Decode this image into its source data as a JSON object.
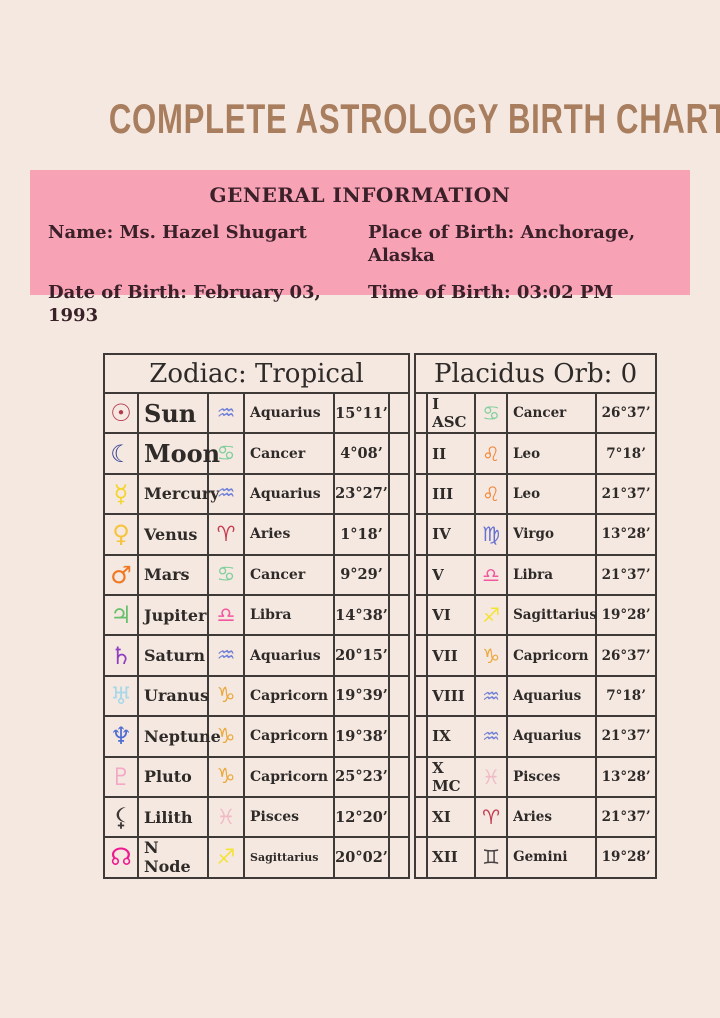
{
  "title": "COMPLETE ASTROLOGY BIRTH CHART",
  "theme": {
    "page_bg": "#f5e8e1",
    "panel_pink": "#f8a2b5",
    "title_brown": "#a87e5f",
    "text_dark": "#3a2029",
    "table_text": "#2e2a28",
    "border": "#3e3a38"
  },
  "general_info": {
    "heading": "GENERAL INFORMATION",
    "name_line": "Name: Ms. Hazel Shugart",
    "date_line": "Date of Birth: February 03, 1993",
    "place_line": "Place of Birth: Anchorage, Alaska",
    "time_line": "Time of Birth: 03:02 PM"
  },
  "zodiac_table": {
    "header": "Zodiac: Tropical",
    "rows": [
      {
        "planet": "Sun",
        "planet_icon": "sun-icon",
        "planet_glyph": "☉",
        "planet_color": "#b43a4c",
        "emphasis": true,
        "sign": "Aquarius",
        "sign_icon": "aquarius-icon",
        "sign_glyph": "♒",
        "sign_color": "#6f80d8",
        "degrees": "15°11’"
      },
      {
        "planet": "Moon",
        "planet_icon": "moon-icon",
        "planet_glyph": "☾",
        "planet_color": "#2e3a8f",
        "emphasis": true,
        "sign": "Cancer",
        "sign_icon": "cancer-icon",
        "sign_glyph": "♋",
        "sign_color": "#82cf9e",
        "degrees": "4°08’"
      },
      {
        "planet": "Mercury",
        "planet_icon": "mercury-icon",
        "planet_glyph": "☿",
        "planet_color": "#f4d429",
        "emphasis": false,
        "sign": "Aquarius",
        "sign_icon": "aquarius-icon",
        "sign_glyph": "♒",
        "sign_color": "#6f80d8",
        "degrees": "23°27’"
      },
      {
        "planet": "Venus",
        "planet_icon": "venus-icon",
        "planet_glyph": "♀",
        "planet_color": "#f5c33c",
        "emphasis": false,
        "sign": "Aries",
        "sign_icon": "aries-icon",
        "sign_glyph": "♈",
        "sign_color": "#c33c50",
        "degrees": "1°18’"
      },
      {
        "planet": "Mars",
        "planet_icon": "mars-icon",
        "planet_glyph": "♂",
        "planet_color": "#f0761f",
        "emphasis": false,
        "sign": "Cancer",
        "sign_icon": "cancer-icon",
        "sign_glyph": "♋",
        "sign_color": "#82cf9e",
        "degrees": "9°29’"
      },
      {
        "planet": "Jupiter",
        "planet_icon": "jupiter-icon",
        "planet_glyph": "♃",
        "planet_color": "#68c06e",
        "emphasis": false,
        "sign": "Libra",
        "sign_icon": "libra-icon",
        "sign_glyph": "♎",
        "sign_color": "#f2579f",
        "degrees": "14°38’"
      },
      {
        "planet": "Saturn",
        "planet_icon": "saturn-icon",
        "planet_glyph": "♄",
        "planet_color": "#8f3fbf",
        "emphasis": false,
        "sign": "Aquarius",
        "sign_icon": "aquarius-icon",
        "sign_glyph": "♒",
        "sign_color": "#6f80d8",
        "degrees": "20°15’"
      },
      {
        "planet": "Uranus",
        "planet_icon": "uranus-icon",
        "planet_glyph": "♅",
        "planet_color": "#a8d8e8",
        "emphasis": false,
        "sign": "Capricorn",
        "sign_icon": "capricorn-icon",
        "sign_glyph": "♑",
        "sign_color": "#eaa83c",
        "degrees": "19°39’"
      },
      {
        "planet": "Neptune",
        "planet_icon": "neptune-icon",
        "planet_glyph": "♆",
        "planet_color": "#4f6ed3",
        "emphasis": false,
        "sign": "Capricorn",
        "sign_icon": "capricorn-icon",
        "sign_glyph": "♑",
        "sign_color": "#eaa83c",
        "degrees": "19°38’"
      },
      {
        "planet": "Pluto",
        "planet_icon": "pluto-icon",
        "planet_glyph": "♇",
        "planet_color": "#f3a8c5",
        "emphasis": false,
        "sign": "Capricorn",
        "sign_icon": "capricorn-icon",
        "sign_glyph": "♑",
        "sign_color": "#eaa83c",
        "degrees": "25°23’"
      },
      {
        "planet": "Lilith",
        "planet_icon": "lilith-icon",
        "planet_glyph": "⚸",
        "planet_color": "#3c3835",
        "emphasis": false,
        "sign": "Pisces",
        "sign_icon": "pisces-icon",
        "sign_glyph": "♓",
        "sign_color": "#f0bac6",
        "degrees": "12°20’"
      },
      {
        "planet": "N Node",
        "planet_icon": "north-node-icon",
        "planet_glyph": "☊",
        "planet_color": "#ee1b90",
        "emphasis": false,
        "sign": "Sagittarius",
        "sign_icon": "sagittarius-icon",
        "sign_glyph": "♐",
        "sign_color": "#f4e335",
        "degrees": "20°02’"
      }
    ]
  },
  "houses_table": {
    "header": "Placidus Orb: 0",
    "rows": [
      {
        "house": "I ASC",
        "sign": "Cancer",
        "sign_icon": "cancer-icon",
        "sign_glyph": "♋",
        "sign_color": "#82cf9e",
        "degrees": "26°37’"
      },
      {
        "house": "II",
        "sign": "Leo",
        "sign_icon": "leo-icon",
        "sign_glyph": "♌",
        "sign_color": "#f08434",
        "degrees": "7°18’"
      },
      {
        "house": "III",
        "sign": "Leo",
        "sign_icon": "leo-icon",
        "sign_glyph": "♌",
        "sign_color": "#f08434",
        "degrees": "21°37’"
      },
      {
        "house": "IV",
        "sign": "Virgo",
        "sign_icon": "virgo-icon",
        "sign_glyph": "♍",
        "sign_color": "#6570d2",
        "degrees": "13°28’"
      },
      {
        "house": "V",
        "sign": "Libra",
        "sign_icon": "libra-icon",
        "sign_glyph": "♎",
        "sign_color": "#f2579f",
        "degrees": "21°37’"
      },
      {
        "house": "VI",
        "sign": "Sagittarius",
        "sign_icon": "sagittarius-icon",
        "sign_glyph": "♐",
        "sign_color": "#f4e335",
        "degrees": "19°28’"
      },
      {
        "house": "VII",
        "sign": "Capricorn",
        "sign_icon": "capricorn-icon",
        "sign_glyph": "♑",
        "sign_color": "#eaa83c",
        "degrees": "26°37’"
      },
      {
        "house": "VIII",
        "sign": "Aquarius",
        "sign_icon": "aquarius-icon",
        "sign_glyph": "♒",
        "sign_color": "#6f80d8",
        "degrees": "7°18’"
      },
      {
        "house": "IX",
        "sign": "Aquarius",
        "sign_icon": "aquarius-icon",
        "sign_glyph": "♒",
        "sign_color": "#6f80d8",
        "degrees": "21°37’"
      },
      {
        "house": "X MC",
        "sign": "Pisces",
        "sign_icon": "pisces-icon",
        "sign_glyph": "♓",
        "sign_color": "#f0bac6",
        "degrees": "13°28’"
      },
      {
        "house": "XI",
        "sign": "Aries",
        "sign_icon": "aries-icon",
        "sign_glyph": "♈",
        "sign_color": "#c33c50",
        "degrees": "21°37’"
      },
      {
        "house": "XII",
        "sign": "Gemini",
        "sign_icon": "gemini-icon",
        "sign_glyph": "♊",
        "sign_color": "#494243",
        "degrees": "19°28’"
      }
    ]
  }
}
